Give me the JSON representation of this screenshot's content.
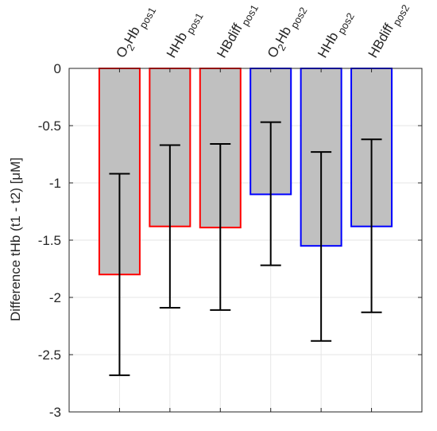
{
  "chart_data": {
    "type": "bar",
    "categories": [
      {
        "base": "O",
        "sub1": "2",
        "mid": "Hb",
        "sub2": "pos1"
      },
      {
        "base": "HHb",
        "sub1": "",
        "mid": "",
        "sub2": "pos1"
      },
      {
        "base": "HBdiff",
        "sub1": "",
        "mid": "",
        "sub2": "pos1"
      },
      {
        "base": "O",
        "sub1": "2",
        "mid": "Hb",
        "sub2": "pos2"
      },
      {
        "base": "HHb",
        "sub1": "",
        "mid": "",
        "sub2": "pos2"
      },
      {
        "base": "HBdiff",
        "sub1": "",
        "mid": "",
        "sub2": "pos2"
      }
    ],
    "values": [
      -1.8,
      -1.38,
      -1.39,
      -1.1,
      -1.55,
      -1.38
    ],
    "error_low": [
      -2.68,
      -2.09,
      -2.11,
      -1.72,
      -2.38,
      -2.13
    ],
    "error_high": [
      -0.92,
      -0.67,
      -0.66,
      -0.47,
      -0.73,
      -0.62
    ],
    "edge_colors": [
      "#ff0000",
      "#ff0000",
      "#ff0000",
      "#0000ff",
      "#0000ff",
      "#0000ff"
    ],
    "bar_fill": "#c0c0c0",
    "ylabel": "Difference tHb (t1 - t2) [μM]",
    "ylim": [
      -3,
      0
    ],
    "yticks": [
      0,
      -0.5,
      -1,
      -1.5,
      -2,
      -2.5,
      -3
    ],
    "ytick_labels": [
      "0",
      "-0.5",
      "-1",
      "-1.5",
      "-2",
      "-2.5",
      "-3"
    ],
    "grid": true,
    "xtick_position": "top"
  }
}
